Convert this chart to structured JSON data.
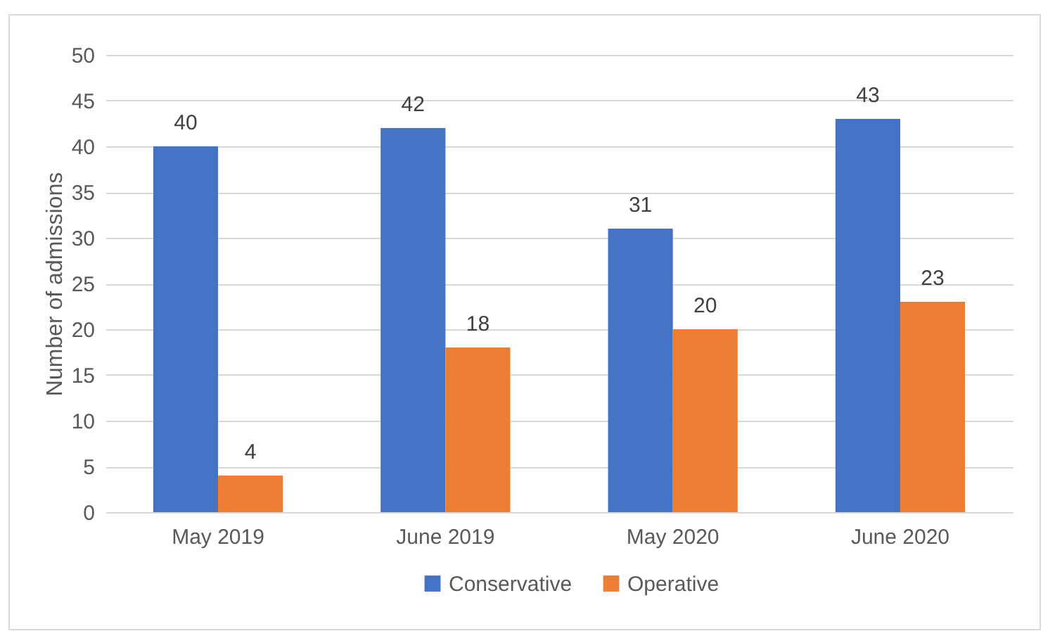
{
  "chart_data": {
    "type": "bar",
    "ylabel": "Number of admissions",
    "categories": [
      "May 2019",
      "June 2019",
      "May 2020",
      "June 2020"
    ],
    "series": [
      {
        "name": "Conservative",
        "color": "#4472c4",
        "values": [
          40,
          42,
          31,
          43
        ]
      },
      {
        "name": "Operative",
        "color": "#ed7d31",
        "values": [
          4,
          18,
          20,
          23
        ]
      }
    ],
    "ylim": [
      0,
      50
    ],
    "yticks": [
      0,
      5,
      10,
      15,
      20,
      25,
      30,
      35,
      40,
      45,
      50
    ],
    "grid": "y",
    "legend": "bottom",
    "data_labels": true
  }
}
